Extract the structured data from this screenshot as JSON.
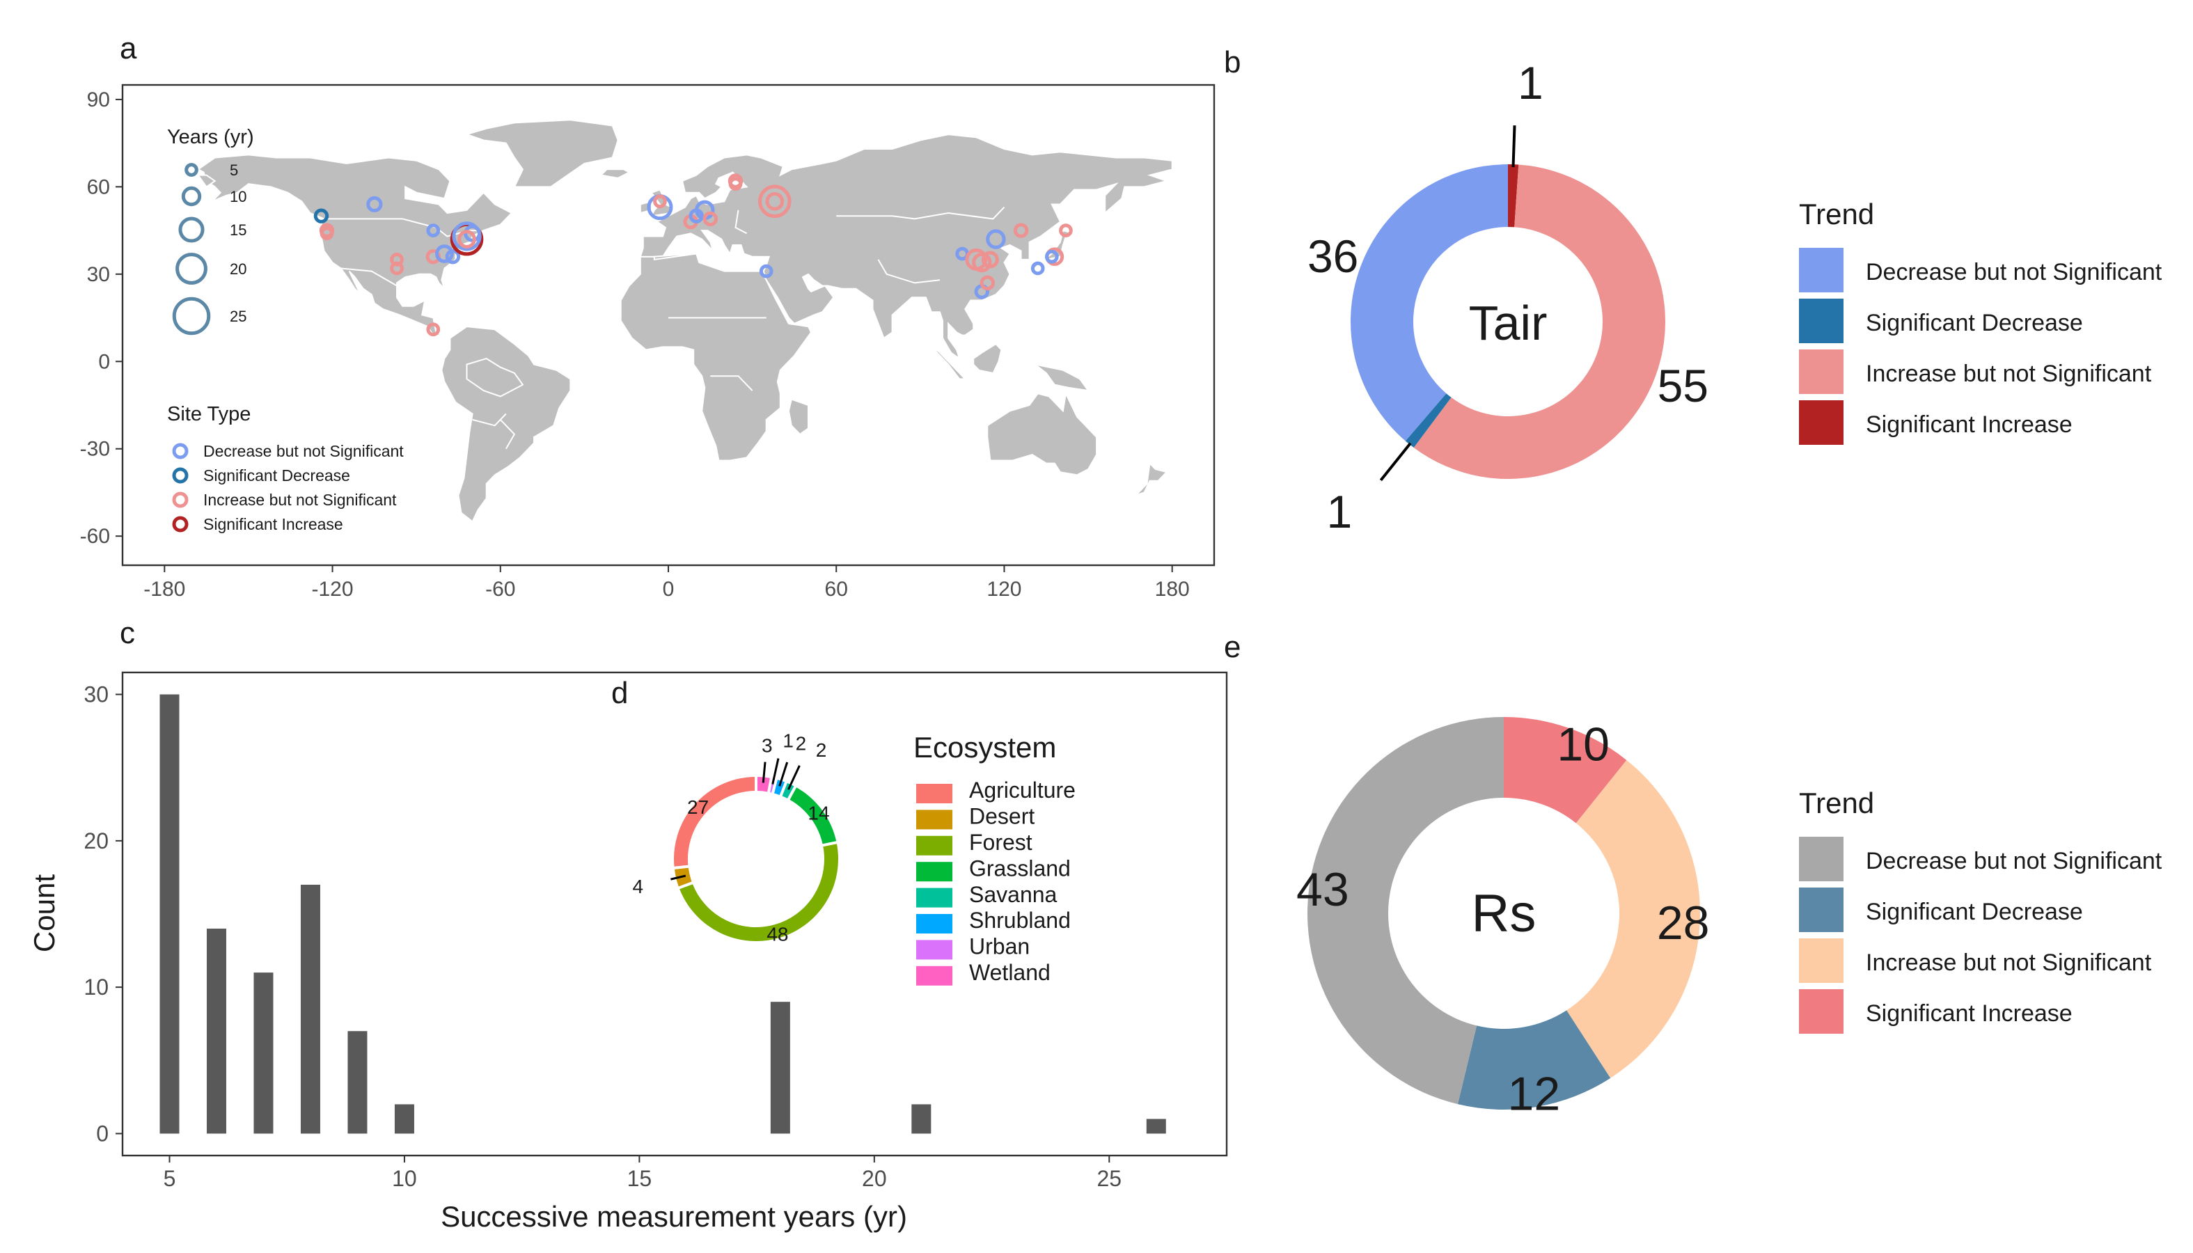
{
  "panel_labels": [
    "a",
    "b",
    "c",
    "d",
    "e"
  ],
  "chart_data": [
    {
      "id": "a",
      "type": "scatter",
      "title": "",
      "xlabel": "",
      "ylabel": "",
      "xlim": [
        -195,
        195
      ],
      "ylim": [
        -70,
        95
      ],
      "xticks": [
        -180,
        -120,
        -60,
        0,
        60,
        120,
        180
      ],
      "yticks": [
        -60,
        -30,
        0,
        30,
        60,
        90
      ],
      "legend_size": {
        "title": "Years (yr)",
        "values": [
          5,
          10,
          15,
          20,
          25
        ]
      },
      "legend_type": {
        "title": "Site Type",
        "entries": [
          {
            "label": "Decrease but not Significant",
            "color": "#7c9cf0"
          },
          {
            "label": "Significant Decrease",
            "color": "#2574a9"
          },
          {
            "label": "Increase but not Significant",
            "color": "#ee9191"
          },
          {
            "label": "Significant Increase",
            "color": "#b22222"
          }
        ]
      },
      "points": [
        {
          "lon": -105,
          "lat": 54,
          "years": 7,
          "type": 0
        },
        {
          "lon": -124,
          "lat": 50,
          "years": 6,
          "type": 1
        },
        {
          "lon": -122,
          "lat": 44,
          "years": 5,
          "type": 2
        },
        {
          "lon": -122,
          "lat": 45,
          "years": 6,
          "type": 2
        },
        {
          "lon": -97,
          "lat": 35,
          "years": 5,
          "type": 2
        },
        {
          "lon": -97,
          "lat": 32,
          "years": 5,
          "type": 2
        },
        {
          "lon": -84,
          "lat": 45,
          "years": 5,
          "type": 0
        },
        {
          "lon": -84,
          "lat": 36,
          "years": 6,
          "type": 2
        },
        {
          "lon": -80,
          "lat": 37,
          "years": 9,
          "type": 0
        },
        {
          "lon": -77,
          "lat": 36,
          "years": 6,
          "type": 0
        },
        {
          "lon": -72,
          "lat": 42,
          "years": 21,
          "type": 3
        },
        {
          "lon": -72,
          "lat": 43,
          "years": 18,
          "type": 0
        },
        {
          "lon": -70,
          "lat": 44,
          "years": 8,
          "type": 0
        },
        {
          "lon": -72,
          "lat": 42,
          "years": 9,
          "type": 2
        },
        {
          "lon": -84,
          "lat": 11,
          "years": 5,
          "type": 2
        },
        {
          "lon": -3,
          "lat": 53,
          "years": 15,
          "type": 0
        },
        {
          "lon": -3,
          "lat": 55,
          "years": 5,
          "type": 2
        },
        {
          "lon": 8,
          "lat": 48,
          "years": 6,
          "type": 2
        },
        {
          "lon": 10,
          "lat": 50,
          "years": 6,
          "type": 0
        },
        {
          "lon": 13,
          "lat": 52,
          "years": 10,
          "type": 0
        },
        {
          "lon": 15,
          "lat": 49,
          "years": 6,
          "type": 2
        },
        {
          "lon": 24,
          "lat": 62,
          "years": 6,
          "type": 2
        },
        {
          "lon": 24,
          "lat": 61,
          "years": 5,
          "type": 2
        },
        {
          "lon": 38,
          "lat": 55,
          "years": 21,
          "type": 2
        },
        {
          "lon": 38,
          "lat": 55,
          "years": 9,
          "type": 2
        },
        {
          "lon": 35,
          "lat": 31,
          "years": 5,
          "type": 0
        },
        {
          "lon": 105,
          "lat": 37,
          "years": 5,
          "type": 0
        },
        {
          "lon": 110,
          "lat": 35,
          "years": 12,
          "type": 2
        },
        {
          "lon": 112,
          "lat": 34,
          "years": 10,
          "type": 2
        },
        {
          "lon": 115,
          "lat": 35,
          "years": 8,
          "type": 2
        },
        {
          "lon": 117,
          "lat": 42,
          "years": 10,
          "type": 0
        },
        {
          "lon": 112,
          "lat": 24,
          "years": 6,
          "type": 0
        },
        {
          "lon": 114,
          "lat": 27,
          "years": 6,
          "type": 2
        },
        {
          "lon": 126,
          "lat": 45,
          "years": 6,
          "type": 2
        },
        {
          "lon": 132,
          "lat": 32,
          "years": 5,
          "type": 0
        },
        {
          "lon": 138,
          "lat": 36,
          "years": 9,
          "type": 2
        },
        {
          "lon": 137,
          "lat": 36,
          "years": 5,
          "type": 0
        },
        {
          "lon": 142,
          "lat": 45,
          "years": 5,
          "type": 2
        }
      ]
    },
    {
      "id": "b",
      "type": "pie",
      "center_label": "Tair",
      "legend_title": "Trend",
      "slices": [
        {
          "label": "Significant Increase",
          "value": 1,
          "color": "#b22222"
        },
        {
          "label": "Increase but not Significant",
          "value": 55,
          "color": "#ee9191"
        },
        {
          "label": "Significant Decrease",
          "value": 1,
          "color": "#2574a9"
        },
        {
          "label": "Decrease but not Significant",
          "value": 36,
          "color": "#7c9cf0"
        }
      ],
      "legend_entries": [
        {
          "label": "Decrease but not Significant",
          "color": "#7c9cf0"
        },
        {
          "label": "Significant Decrease",
          "color": "#2574a9"
        },
        {
          "label": "Increase but not Significant",
          "color": "#ee9191"
        },
        {
          "label": "Significant Increase",
          "color": "#b22222"
        }
      ]
    },
    {
      "id": "c",
      "type": "bar",
      "xlabel": "Successive measurement years (yr)",
      "ylabel": "Count",
      "xlim": [
        4,
        27.5
      ],
      "ylim": [
        -1.5,
        31.5
      ],
      "xticks": [
        5,
        10,
        15,
        20,
        25
      ],
      "yticks": [
        0,
        10,
        20,
        30
      ],
      "x": [
        5,
        6,
        7,
        8,
        9,
        10,
        18,
        21,
        26
      ],
      "values": [
        30,
        14,
        11,
        17,
        7,
        2,
        9,
        2,
        1
      ],
      "color": "#595959"
    },
    {
      "id": "d",
      "type": "pie",
      "legend_title": "Ecosystem",
      "slices": [
        {
          "label": "Wetland",
          "value": 3,
          "color": "#ff61c3"
        },
        {
          "label": "Urban",
          "value": 1,
          "color": "#db72fb"
        },
        {
          "label": "Shrubland",
          "value": 2,
          "color": "#00a9ff"
        },
        {
          "label": "Savanna",
          "value": 2,
          "color": "#00c19a"
        },
        {
          "label": "Grassland",
          "value": 14,
          "color": "#00ba38"
        },
        {
          "label": "Forest",
          "value": 48,
          "color": "#7cae00"
        },
        {
          "label": "Desert",
          "value": 4,
          "color": "#cd9600"
        },
        {
          "label": "Agriculture",
          "value": 27,
          "color": "#f8766d"
        }
      ],
      "legend_entries": [
        {
          "label": "Agriculture",
          "color": "#f8766d"
        },
        {
          "label": "Desert",
          "color": "#cd9600"
        },
        {
          "label": "Forest",
          "color": "#7cae00"
        },
        {
          "label": "Grassland",
          "color": "#00ba38"
        },
        {
          "label": "Savanna",
          "color": "#00c19a"
        },
        {
          "label": "Shrubland",
          "color": "#00a9ff"
        },
        {
          "label": "Urban",
          "color": "#db72fb"
        },
        {
          "label": "Wetland",
          "color": "#ff61c3"
        }
      ]
    },
    {
      "id": "e",
      "type": "pie",
      "center_label": "Rs",
      "legend_title": "Trend",
      "slices": [
        {
          "label": "Significant Increase",
          "value": 10,
          "color": "#f07b80"
        },
        {
          "label": "Increase but not Significant",
          "value": 28,
          "color": "#fdcca4"
        },
        {
          "label": "Significant Decrease",
          "value": 12,
          "color": "#5b88a6"
        },
        {
          "label": "Decrease but not Significant",
          "value": 43,
          "color": "#a8a8a8"
        }
      ],
      "legend_entries": [
        {
          "label": "Decrease but not Significant",
          "color": "#a8a8a8"
        },
        {
          "label": "Significant Decrease",
          "color": "#5b88a6"
        },
        {
          "label": "Increase but not Significant",
          "color": "#fdcca4"
        },
        {
          "label": "Significant Increase",
          "color": "#f07b80"
        }
      ]
    }
  ]
}
